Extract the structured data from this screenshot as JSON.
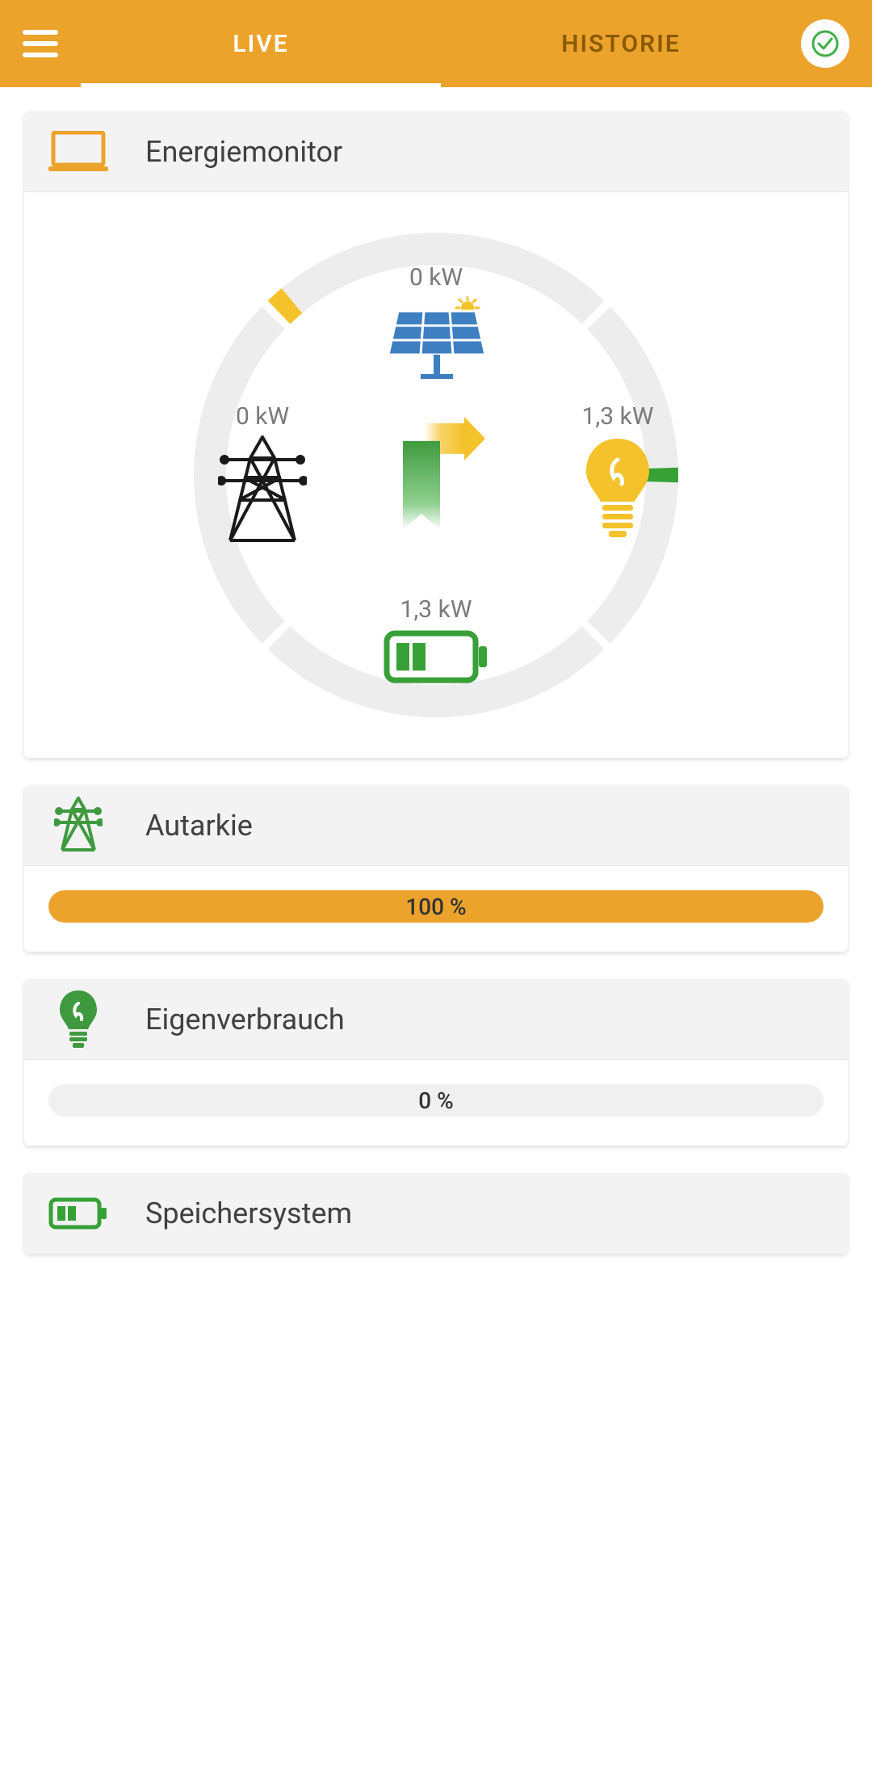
{
  "colors": {
    "accent": "#eca32c",
    "header_bg": "#eca32c",
    "green": "#3f9a3f",
    "battery_green": "#37a137",
    "ring_bg": "#ededed",
    "text_muted": "#7a7a7a",
    "card_header_bg": "#f3f3f3",
    "solar_blue": "#3e7fc1",
    "bulb_yellow": "#f4c22b"
  },
  "header": {
    "tabs": {
      "live": "LIVE",
      "historie": "HISTORIE"
    },
    "active_tab": "live"
  },
  "energy_monitor": {
    "title": "Energiemonitor",
    "ring": {
      "radius_outer": 300,
      "radius_inner": 260,
      "segments": [
        {
          "id": "top",
          "start_deg": 226,
          "end_deg": 314,
          "fill_pct": 0,
          "fill_color": "#f4c22b"
        },
        {
          "id": "right",
          "start_deg": 316,
          "end_deg": 44,
          "fill_pct": 5,
          "fill_color": "#f4c22b"
        },
        {
          "id": "bottom",
          "start_deg": 46,
          "end_deg": 134,
          "fill_pct": 4,
          "fill_color": "#37a137",
          "fill_align": "center"
        },
        {
          "id": "left",
          "start_deg": 136,
          "end_deg": 224,
          "fill_pct": 0,
          "fill_color": "#333333"
        }
      ]
    },
    "nodes": {
      "solar": {
        "label": "0 kW"
      },
      "grid": {
        "label": "0 kW"
      },
      "consume": {
        "label": "1,3 kW"
      },
      "battery": {
        "label": "1,3 kW"
      }
    }
  },
  "autarkie": {
    "title": "Autarkie",
    "percent": 100,
    "text": "100 %",
    "bar_color": "#eca32c"
  },
  "eigenverbrauch": {
    "title": "Eigenverbrauch",
    "percent": 0,
    "text": "0 %",
    "bar_color": "#eca32c"
  },
  "speichersystem": {
    "title": "Speichersystem"
  }
}
